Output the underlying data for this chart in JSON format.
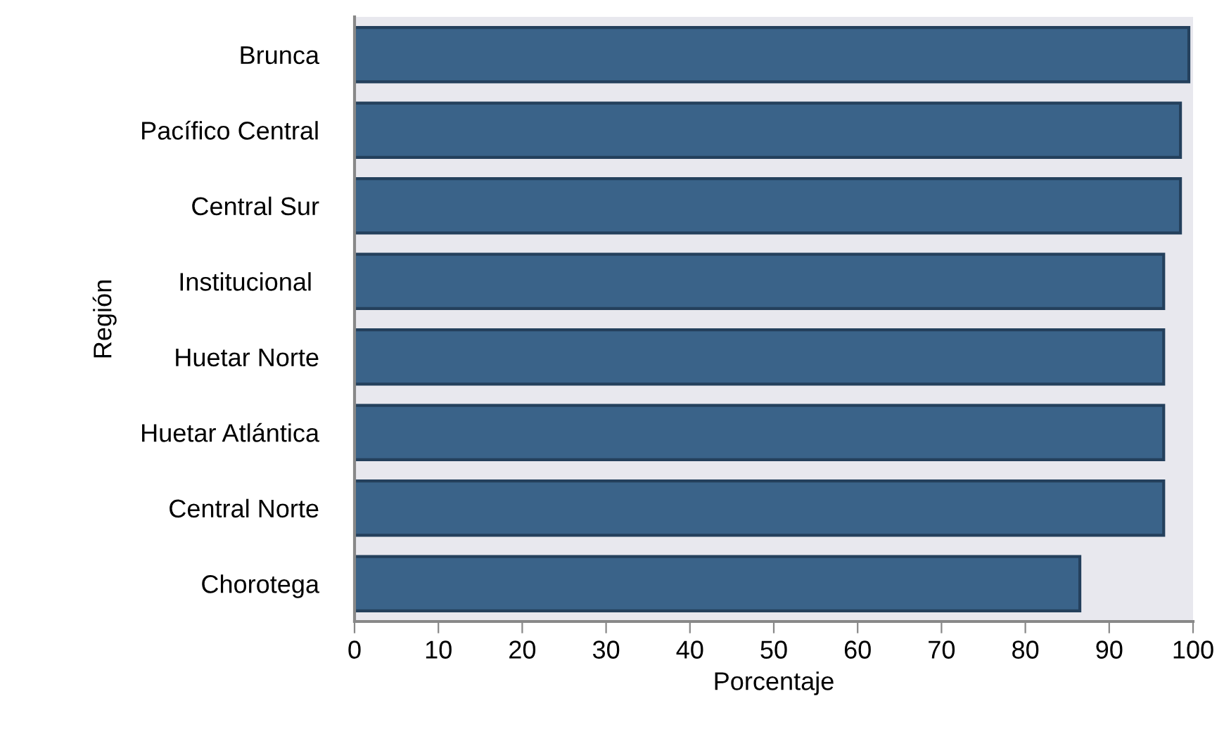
{
  "chart_data": {
    "type": "bar",
    "orientation": "horizontal",
    "xlabel": "Porcentaje",
    "ylabel": "Región",
    "categories": [
      "Brunca",
      "Pacífico Central",
      "Central Sur",
      "Institucional ",
      "Huetar Norte",
      "Huetar Atlántica",
      "Central Norte",
      "Chorotega"
    ],
    "values": [
      99.5,
      98.5,
      98.5,
      96.5,
      96.5,
      96.5,
      96.5,
      86.5
    ],
    "color": "#3a6389",
    "xlim": [
      0,
      100
    ],
    "xticks": [
      0,
      10,
      20,
      30,
      40,
      50,
      60,
      70,
      80,
      90,
      100
    ],
    "grid": false,
    "legend": false
  }
}
